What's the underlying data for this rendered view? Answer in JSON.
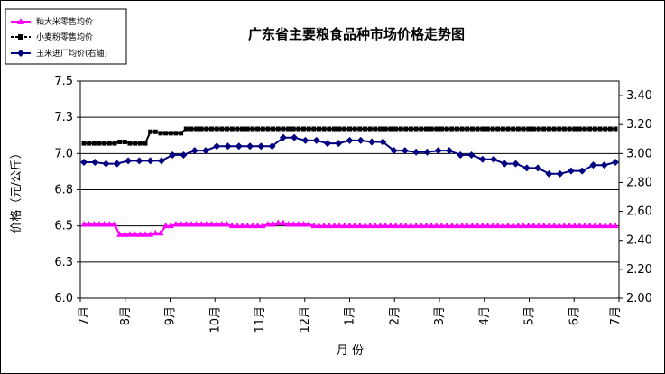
{
  "chart_data": {
    "type": "line",
    "title": "广东省主要粮食品种市场价格走势图",
    "xlabel": "月 份",
    "ylabel": "价格（元/公斤）",
    "ylim": [
      6.0,
      7.5
    ],
    "y_ticks": [
      "6.0",
      "6.3",
      "6.5",
      "6.8",
      "7.0",
      "7.3",
      "7.5"
    ],
    "y2lim": [
      2.0,
      3.5
    ],
    "y2_ticks": [
      "2.00",
      "2.20",
      "2.40",
      "2.60",
      "2.80",
      "3.00",
      "3.20",
      "3.40"
    ],
    "x_tick_labels": [
      "7月",
      "8月",
      "9月",
      "10月",
      "11月",
      "12月",
      "1月",
      "2月",
      "3月",
      "4月",
      "5月",
      "6月",
      "7月"
    ],
    "grid": "horizontal",
    "legend_position": "top-left",
    "series": [
      {
        "name": "籼大米零售均价",
        "axis": "left",
        "color": "#ff00ff",
        "marker": "triangle",
        "values": [
          6.51,
          6.51,
          6.51,
          6.51,
          6.51,
          6.51,
          6.51,
          6.44,
          6.44,
          6.44,
          6.44,
          6.44,
          6.44,
          6.44,
          6.45,
          6.45,
          6.5,
          6.5,
          6.51,
          6.51,
          6.51,
          6.51,
          6.51,
          6.51,
          6.51,
          6.51,
          6.51,
          6.51,
          6.51,
          6.5,
          6.5,
          6.5,
          6.5,
          6.5,
          6.5,
          6.5,
          6.51,
          6.51,
          6.52,
          6.52,
          6.51,
          6.51,
          6.51,
          6.51,
          6.51,
          6.5,
          6.5,
          6.5,
          6.5,
          6.5,
          6.5,
          6.5,
          6.5,
          6.5,
          6.5,
          6.5,
          6.5,
          6.5,
          6.5,
          6.5,
          6.5,
          6.5,
          6.5,
          6.5,
          6.5,
          6.5,
          6.5,
          6.5,
          6.5,
          6.5,
          6.5,
          6.5,
          6.5,
          6.5,
          6.5,
          6.5,
          6.5,
          6.5,
          6.5,
          6.5,
          6.5,
          6.5,
          6.5,
          6.5,
          6.5,
          6.5,
          6.5,
          6.5,
          6.5,
          6.5,
          6.5,
          6.5,
          6.5,
          6.5,
          6.5,
          6.5,
          6.5,
          6.5,
          6.5,
          6.5,
          6.5,
          6.5,
          6.5,
          6.5,
          6.5
        ]
      },
      {
        "name": "小麦粉零售均价",
        "axis": "left",
        "color": "#000000",
        "marker": "square",
        "values": [
          7.07,
          7.07,
          7.07,
          7.07,
          7.07,
          7.07,
          7.07,
          7.08,
          7.08,
          7.07,
          7.07,
          7.07,
          7.07,
          7.15,
          7.15,
          7.14,
          7.14,
          7.14,
          7.14,
          7.14,
          7.17,
          7.17,
          7.17,
          7.17,
          7.17,
          7.17,
          7.17,
          7.17,
          7.17,
          7.17,
          7.17,
          7.17,
          7.17,
          7.17,
          7.17,
          7.17,
          7.17,
          7.17,
          7.17,
          7.17,
          7.17,
          7.17,
          7.17,
          7.17,
          7.17,
          7.17,
          7.17,
          7.17,
          7.17,
          7.17,
          7.17,
          7.17,
          7.17,
          7.17,
          7.17,
          7.17,
          7.17,
          7.17,
          7.17,
          7.17,
          7.17,
          7.17,
          7.17,
          7.17,
          7.17,
          7.17,
          7.17,
          7.17,
          7.17,
          7.17,
          7.17,
          7.17,
          7.17,
          7.17,
          7.17,
          7.17,
          7.17,
          7.17,
          7.17,
          7.17,
          7.17,
          7.17,
          7.17,
          7.17,
          7.17,
          7.17,
          7.17,
          7.17,
          7.17,
          7.17,
          7.17,
          7.17,
          7.17,
          7.17,
          7.17,
          7.17,
          7.17,
          7.17,
          7.17,
          7.17,
          7.17,
          7.17,
          7.17,
          7.17,
          7.17
        ]
      },
      {
        "name": "玉米进厂均价(右轴)",
        "axis": "right",
        "color": "#000080",
        "marker": "diamond",
        "values": [
          2.94,
          2.94,
          2.93,
          2.93,
          2.95,
          2.95,
          2.95,
          2.95,
          2.99,
          2.99,
          3.02,
          3.02,
          3.05,
          3.05,
          3.05,
          3.05,
          3.05,
          3.05,
          3.11,
          3.11,
          3.09,
          3.09,
          3.07,
          3.07,
          3.09,
          3.09,
          3.08,
          3.08,
          3.02,
          3.02,
          3.01,
          3.01,
          3.02,
          3.02,
          2.99,
          2.99,
          2.96,
          2.96,
          2.93,
          2.93,
          2.9,
          2.9,
          2.86,
          2.86,
          2.88,
          2.88,
          2.92,
          2.92,
          2.94
        ]
      }
    ]
  }
}
